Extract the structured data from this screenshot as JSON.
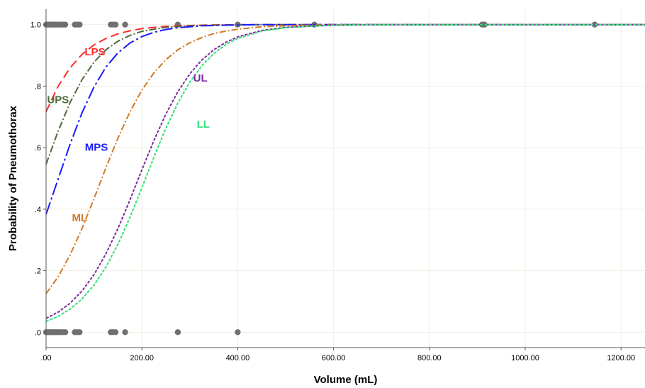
{
  "chart_data": {
    "type": "line",
    "xlabel": "Volume (mL)",
    "ylabel": "Probability of Pneumothorax",
    "xlim": [
      0,
      1250
    ],
    "ylim": [
      -0.05,
      1.05
    ],
    "x_ticks": [
      {
        "value": 0,
        "label": ".00"
      },
      {
        "value": 200,
        "label": "200.00"
      },
      {
        "value": 400,
        "label": "400.00"
      },
      {
        "value": 600,
        "label": "600.00"
      },
      {
        "value": 800,
        "label": "800.00"
      },
      {
        "value": 1000,
        "label": "1000.00"
      },
      {
        "value": 1200,
        "label": "1200.00"
      }
    ],
    "y_ticks": [
      {
        "value": 0,
        "label": ".0"
      },
      {
        "value": 0.2,
        "label": ".2"
      },
      {
        "value": 0.4,
        "label": ".4"
      },
      {
        "value": 0.6,
        "label": ".6"
      },
      {
        "value": 0.8,
        "label": ".8"
      },
      {
        "value": 1.0,
        "label": "1.0"
      }
    ],
    "grid": true,
    "legend": "none (series labeled inline)",
    "x": [
      0,
      25,
      50,
      75,
      100,
      125,
      150,
      175,
      200,
      225,
      250,
      275,
      300,
      325,
      350,
      375,
      400,
      450,
      500,
      550,
      600,
      700,
      800,
      1000,
      1250
    ],
    "series": [
      {
        "name": "LPS",
        "color": "#ff2a2a",
        "dash": "12,6",
        "values": [
          0.717,
          0.799,
          0.859,
          0.903,
          0.934,
          0.955,
          0.97,
          0.98,
          0.987,
          0.991,
          0.994,
          0.996,
          0.997,
          0.998,
          0.999,
          0.999,
          1.0,
          1.0,
          1.0,
          1.0,
          1.0,
          1.0,
          1.0,
          1.0,
          1.0
        ]
      },
      {
        "name": "UPS",
        "color": "#4c6b3c",
        "dash": "10,3,2,3",
        "values": [
          0.546,
          0.653,
          0.746,
          0.821,
          0.878,
          0.918,
          0.946,
          0.965,
          0.978,
          0.985,
          0.991,
          0.994,
          0.996,
          0.997,
          0.998,
          0.999,
          0.999,
          1.0,
          1.0,
          1.0,
          1.0,
          1.0,
          1.0,
          1.0,
          1.0
        ]
      },
      {
        "name": "MPS",
        "color": "#1a1aff",
        "dash": "18,4,3,4",
        "values": [
          0.383,
          0.497,
          0.611,
          0.713,
          0.797,
          0.862,
          0.908,
          0.94,
          0.961,
          0.975,
          0.984,
          0.99,
          0.993,
          0.996,
          0.997,
          0.998,
          0.999,
          1.0,
          1.0,
          1.0,
          1.0,
          1.0,
          1.0,
          1.0,
          1.0
        ]
      },
      {
        "name": "ML",
        "color": "#d07a28",
        "dash": "9,3,2,3",
        "values": [
          0.125,
          0.18,
          0.251,
          0.337,
          0.434,
          0.535,
          0.631,
          0.716,
          0.787,
          0.843,
          0.886,
          0.918,
          0.941,
          0.958,
          0.971,
          0.979,
          0.985,
          0.993,
          0.996,
          0.998,
          0.999,
          1.0,
          1.0,
          1.0,
          1.0
        ]
      },
      {
        "name": "UL",
        "color": "#7a2e9c",
        "dash": "4,2",
        "values": [
          0.045,
          0.065,
          0.094,
          0.134,
          0.187,
          0.255,
          0.337,
          0.43,
          0.528,
          0.623,
          0.709,
          0.782,
          0.84,
          0.885,
          0.918,
          0.942,
          0.96,
          0.981,
          0.991,
          0.995,
          0.998,
          1.0,
          1.0,
          1.0,
          1.0
        ]
      },
      {
        "name": "LL",
        "color": "#33e07a",
        "dash": "4,2",
        "values": [
          0.035,
          0.051,
          0.075,
          0.108,
          0.153,
          0.212,
          0.286,
          0.373,
          0.47,
          0.569,
          0.663,
          0.745,
          0.813,
          0.866,
          0.906,
          0.935,
          0.955,
          0.979,
          0.99,
          0.995,
          0.998,
          1.0,
          1.0,
          1.0,
          1.0
        ]
      }
    ],
    "observed_points": {
      "color": "#707070",
      "at_1": [
        0,
        3,
        6,
        9,
        12,
        15,
        18,
        22,
        26,
        30,
        35,
        40,
        60,
        65,
        70,
        135,
        140,
        145,
        165,
        275,
        400,
        560,
        910,
        915,
        1145
      ],
      "at_0": [
        0,
        3,
        6,
        9,
        12,
        15,
        18,
        22,
        26,
        30,
        35,
        40,
        60,
        65,
        70,
        135,
        140,
        145,
        165,
        275,
        400
      ]
    },
    "annotations": [
      {
        "text": "LPS",
        "color": "#ff2a2a",
        "x": 102,
        "y": 0.9
      },
      {
        "text": "UPS",
        "color": "#4c6b3c",
        "x": 25,
        "y": 0.745
      },
      {
        "text": "MPS",
        "color": "#1a1aff",
        "x": 105,
        "y": 0.59
      },
      {
        "text": "ML",
        "color": "#d07a28",
        "x": 70,
        "y": 0.36
      },
      {
        "text": "UL",
        "color": "#7a2e9c",
        "x": 322,
        "y": 0.815
      },
      {
        "text": "LL",
        "color": "#33e07a",
        "x": 328,
        "y": 0.665
      }
    ]
  }
}
